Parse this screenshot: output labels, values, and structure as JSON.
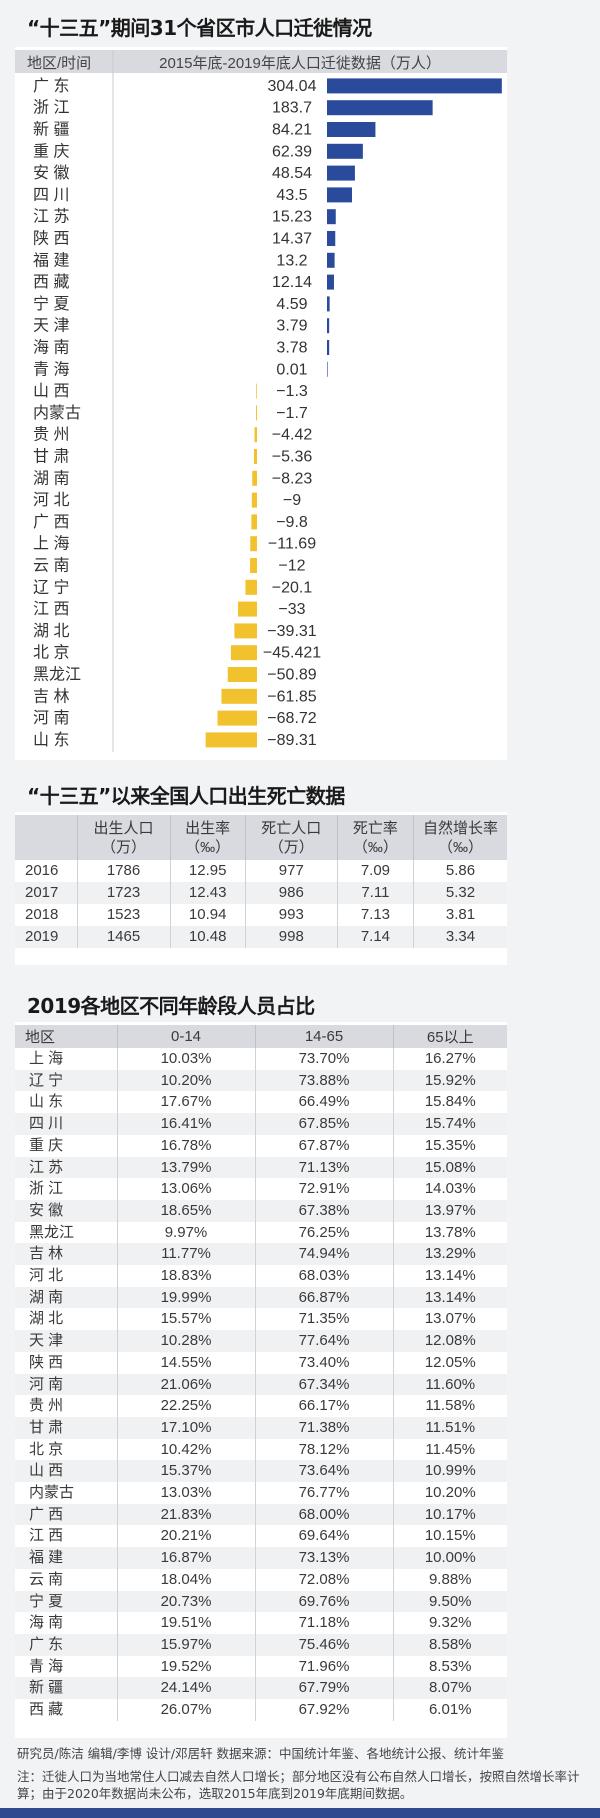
{
  "chart_data": {
    "type": "bar",
    "orientation": "horizontal",
    "title": "“十三五”期间31个省区市人口迁徙情况",
    "header_label": "地区/时间",
    "header_value": "2015年底-2019年底人口迁徙数据（万人）",
    "categories": [
      "广 东",
      "浙 江",
      "新 疆",
      "重 庆",
      "安 徽",
      "四 川",
      "江 苏",
      "陕 西",
      "福 建",
      "西 藏",
      "宁 夏",
      "天 津",
      "海 南",
      "青 海",
      "山 西",
      "内蒙古",
      "贵 州",
      "甘 肃",
      "湖 南",
      "河 北",
      "广 西",
      "上 海",
      "云 南",
      "辽 宁",
      "江 西",
      "湖 北",
      "北 京",
      "黑龙江",
      "吉 林",
      "河 南",
      "山 东"
    ],
    "values": [
      304.04,
      183.7,
      84.21,
      62.39,
      48.54,
      43.5,
      15.23,
      14.37,
      13.2,
      12.14,
      4.59,
      3.79,
      3.78,
      0.01,
      -1.3,
      -1.7,
      -4.42,
      -5.36,
      -8.23,
      -9,
      -9.8,
      -11.69,
      -12,
      -20.1,
      -33,
      -39.31,
      -45.421,
      -50.89,
      -61.85,
      -68.72,
      -89.31
    ],
    "value_labels": [
      "304.04",
      "183.7",
      "84.21",
      "62.39",
      "48.54",
      "43.5",
      "15.23",
      "14.37",
      "13.2",
      "12.14",
      "4.59",
      "3.79",
      "3.78",
      "0.01",
      "−1.3",
      "−1.7",
      "−4.42",
      "−5.36",
      "−8.23",
      "−9",
      "−9.8",
      "−11.69",
      "−12",
      "−20.1",
      "−33",
      "−39.31",
      "−45.421",
      "−50.89",
      "−61.85",
      "−68.72",
      "−89.31"
    ],
    "positive_color": "#2a4a9b",
    "negative_color": "#f2c12e",
    "grid": false
  },
  "births_deaths": {
    "title": "“十三五”以来全国人口出生死亡数据",
    "headers": [
      [
        "",
        ""
      ],
      [
        "出生人口",
        "（万）"
      ],
      [
        "出生率",
        "（‰）"
      ],
      [
        "死亡人口",
        "（万）"
      ],
      [
        "死亡率",
        "（‰）"
      ],
      [
        "自然增长率",
        "（‰）"
      ]
    ],
    "rows": [
      [
        "2016",
        "1786",
        "12.95",
        "977",
        "7.09",
        "5.86"
      ],
      [
        "2017",
        "1723",
        "12.43",
        "986",
        "7.11",
        "5.32"
      ],
      [
        "2018",
        "1523",
        "10.94",
        "993",
        "7.13",
        "3.81"
      ],
      [
        "2019",
        "1465",
        "10.48",
        "998",
        "7.14",
        "3.34"
      ]
    ]
  },
  "age_structure": {
    "title": "2019各地区不同年龄段人员占比",
    "headers": [
      "地区",
      "0-14",
      "14-65",
      "65以上"
    ],
    "rows": [
      [
        "上 海",
        "10.03%",
        "73.70%",
        "16.27%"
      ],
      [
        "辽 宁",
        "10.20%",
        "73.88%",
        "15.92%"
      ],
      [
        "山 东",
        "17.67%",
        "66.49%",
        "15.84%"
      ],
      [
        "四 川",
        "16.41%",
        "67.85%",
        "15.74%"
      ],
      [
        "重 庆",
        "16.78%",
        "67.87%",
        "15.35%"
      ],
      [
        "江 苏",
        "13.79%",
        "71.13%",
        "15.08%"
      ],
      [
        "浙 江",
        "13.06%",
        "72.91%",
        "14.03%"
      ],
      [
        "安 徽",
        "18.65%",
        "67.38%",
        "13.97%"
      ],
      [
        "黑龙江",
        "9.97%",
        "76.25%",
        "13.78%"
      ],
      [
        "吉 林",
        "11.77%",
        "74.94%",
        "13.29%"
      ],
      [
        "河 北",
        "18.83%",
        "68.03%",
        "13.14%"
      ],
      [
        "湖 南",
        "19.99%",
        "66.87%",
        "13.14%"
      ],
      [
        "湖 北",
        "15.57%",
        "71.35%",
        "13.07%"
      ],
      [
        "天 津",
        "10.28%",
        "77.64%",
        "12.08%"
      ],
      [
        "陕 西",
        "14.55%",
        "73.40%",
        "12.05%"
      ],
      [
        "河 南",
        "21.06%",
        "67.34%",
        "11.60%"
      ],
      [
        "贵 州",
        "22.25%",
        "66.17%",
        "11.58%"
      ],
      [
        "甘 肃",
        "17.10%",
        "71.38%",
        "11.51%"
      ],
      [
        "北 京",
        "10.42%",
        "78.12%",
        "11.45%"
      ],
      [
        "山 西",
        "15.37%",
        "73.64%",
        "10.99%"
      ],
      [
        "内蒙古",
        "13.03%",
        "76.77%",
        "10.20%"
      ],
      [
        "广 西",
        "21.83%",
        "68.00%",
        "10.17%"
      ],
      [
        "江 西",
        "20.21%",
        "69.64%",
        "10.15%"
      ],
      [
        "福 建",
        "16.87%",
        "73.13%",
        "10.00%"
      ],
      [
        "云 南",
        "18.04%",
        "72.08%",
        "9.88%"
      ],
      [
        "宁 夏",
        "20.73%",
        "69.76%",
        "9.50%"
      ],
      [
        "海 南",
        "19.51%",
        "71.18%",
        "9.32%"
      ],
      [
        "广 东",
        "15.97%",
        "75.46%",
        "8.58%"
      ],
      [
        "青 海",
        "19.52%",
        "71.96%",
        "8.53%"
      ],
      [
        "新 疆",
        "24.14%",
        "67.79%",
        "8.07%"
      ],
      [
        "西 藏",
        "26.07%",
        "67.92%",
        "6.01%"
      ]
    ]
  },
  "footer": {
    "credits": "研究员/陈洁   编辑/李博   设计/邓居轩   数据来源：中国统计年鉴、各地统计公报、统计年鉴",
    "note": "注：迁徙人口为当地常住人口减去自然人口增长；部分地区没有公布自然人口增长，按照自然增长率计算；由于2020年数据尚未公布，选取2015年底到2019年底期间数据。"
  }
}
